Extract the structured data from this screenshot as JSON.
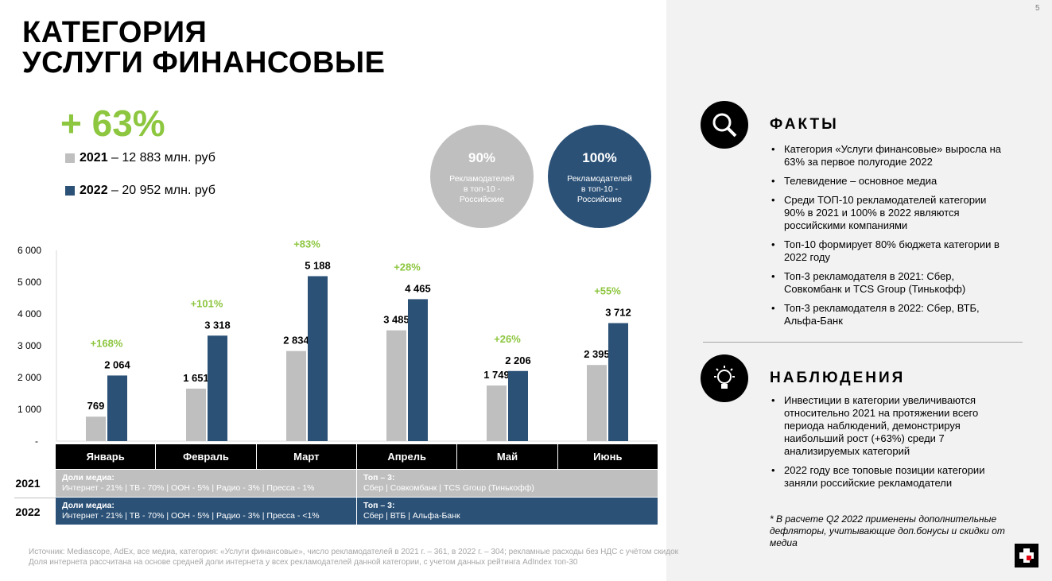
{
  "title": [
    "КАТЕГОРИЯ",
    "УСЛУГИ ФИНАНСОВЫЕ"
  ],
  "page_number": "5",
  "growth": "+ 63%",
  "legend": [
    {
      "year": "2021",
      "text": " – 12 883 млн. руб",
      "color": "#bfbfbf"
    },
    {
      "year": "2022",
      "text": " – 20 952 млн. руб",
      "color": "#2b5177"
    }
  ],
  "circles": [
    {
      "pct": "90%",
      "text": "Рекламодателей в топ-10 - Российские",
      "color": "#bfbfbf"
    },
    {
      "pct": "100%",
      "text": "Рекламодателей в топ-10 - Российские",
      "color": "#2b5177"
    }
  ],
  "chart_data": {
    "type": "bar",
    "categories": [
      "Январь",
      "Февраль",
      "Март",
      "Апрель",
      "Май",
      "Июнь"
    ],
    "series": [
      {
        "name": "2021",
        "color": "#bfbfbf",
        "values": [
          769,
          1651,
          2834,
          3485,
          1749,
          2395
        ],
        "labels": [
          "769",
          "1 651",
          "2 834",
          "3 485",
          "1 749",
          "2 395"
        ]
      },
      {
        "name": "2022",
        "color": "#2b5177",
        "values": [
          2064,
          3318,
          5188,
          4465,
          2206,
          3712
        ],
        "labels": [
          "2 064",
          "3 318",
          "5 188",
          "4 465",
          "2 206",
          "3 712"
        ]
      }
    ],
    "growth_labels": [
      "+168%",
      "+101%",
      "+83%",
      "+28%",
      "+26%",
      "+55%"
    ],
    "yticks": [
      "-",
      "1 000",
      "2 000",
      "3 000",
      "4 000",
      "5 000",
      "6 000"
    ],
    "ylim": [
      0,
      6000
    ]
  },
  "table": [
    {
      "year": "2021",
      "media_h": "Доли медиа:",
      "media": "Интернет - 21% | ТВ - 70% | ООН - 5% | Радио - 3% | Пресса - 1%",
      "top_h": "Топ – 3:",
      "top": "Сбер | Совкомбанк | TCS Group (Тинькофф)"
    },
    {
      "year": "2022",
      "media_h": "Доли медиа:",
      "media": "Интернет - 21% | ТВ - 70% | ООН - 5% | Радио - 3% | Пресса - <1%",
      "top_h": "Топ – 3:",
      "top": "Сбер | ВТБ | Альфа-Банк"
    }
  ],
  "source": [
    "Источник: Mediascope, AdEx, все медиа, категория: «Услуги финансовые», число рекламодателей в 2021 г. – 361, в 2022 г. – 304; рекламные расходы без НДС с учётом скидок",
    "Доля интернета рассчитана на основе средней доли интернета у всех рекламодателей данной категории, с учетом данных рейтинга AdIndex топ-30"
  ],
  "facts": {
    "heading": "ФАКТЫ",
    "items": [
      "Категория «Услуги финансовые» выросла на 63% за первое полугодие 2022",
      "Телевидение – основное медиа",
      "Среди ТОП-10 рекламодателей категории 90% в 2021 и 100% в 2022 являются российскими компаниями",
      "Топ-10 формирует 80% бюджета категории в 2022 году",
      "Топ-3 рекламодателя в 2021: Сбер, Совкомбанк и TCS Group (Тинькофф)",
      "Топ-3 рекламодателя в 2022: Сбер, ВТБ, Альфа-Банк"
    ]
  },
  "observations": {
    "heading": "НАБЛЮДЕНИЯ",
    "items": [
      "Инвестиции в категории увеличиваются относительно 2021 на протяжении всего периода наблюдений, демонстрируя наибольший рост (+63%) среди 7 анализируемых категорий",
      "2022 году все топовые позиции категории заняли российские рекламодатели"
    ]
  },
  "note": "* В расчете Q2 2022 применены дополнительные дефляторы, учитывающие доп.бонусы и скидки от медиа"
}
